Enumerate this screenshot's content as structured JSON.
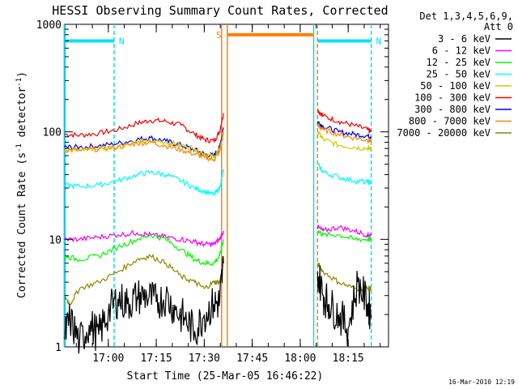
{
  "chart_data": {
    "type": "line",
    "title": "HESSI Observing Summary Count Rates, Corrected",
    "xlabel": "Start Time (25-Mar-05 16:46:22)",
    "ylabel": "Corrected Count Rate (s",
    "ylabel_sup": "-1",
    "ylabel_mid": " detector",
    "ylabel_end": ")",
    "y_scale": "log",
    "ylim": [
      1,
      1000
    ],
    "xlim_minutes": [
      16.77,
      18.46
    ],
    "x_ticks": [
      {
        "hours": 17.0,
        "label": "17:00"
      },
      {
        "hours": 17.25,
        "label": "17:15"
      },
      {
        "hours": 17.5,
        "label": "17:30"
      },
      {
        "hours": 17.75,
        "label": "17:45"
      },
      {
        "hours": 18.0,
        "label": "18:00"
      },
      {
        "hours": 18.25,
        "label": "18:15"
      }
    ],
    "y_ticks": [
      {
        "value": 1,
        "label": "1"
      },
      {
        "value": 10,
        "label": "10"
      },
      {
        "value": 100,
        "label": "100"
      },
      {
        "value": 1000,
        "label": "1000"
      }
    ],
    "legend": {
      "header_line1": "Det 1,3,4,5,6,9,",
      "header_line2": "Att 0",
      "placement": "right",
      "entries": [
        {
          "label": "3 - 6 keV",
          "color": "#000000"
        },
        {
          "label": "6 - 12 keV",
          "color": "#ff00ff"
        },
        {
          "label": "12 - 25 keV",
          "color": "#00ff00"
        },
        {
          "label": "25 - 50 keV",
          "color": "#00ffff"
        },
        {
          "label": "50 - 100 keV",
          "color": "#d4cc00"
        },
        {
          "label": "100 - 300 keV",
          "color": "#ff0000"
        },
        {
          "label": "300 - 800 keV",
          "color": "#0000ff"
        },
        {
          "label": "800 - 7000 keV",
          "color": "#ff8800"
        },
        {
          "label": "7000 - 20000 keV",
          "color": "#888800"
        }
      ]
    },
    "flags": [
      {
        "label": "N",
        "color": "#00e0ff",
        "start_hours": 16.77,
        "end_hours": 17.03,
        "level": 700
      },
      {
        "label": "N",
        "color": "#00e0ff",
        "start_hours": 18.09,
        "end_hours": 18.37,
        "level": 700
      },
      {
        "label": "S",
        "color": "#ff8000",
        "start_hours": 17.62,
        "end_hours": 18.07,
        "level": 800
      }
    ],
    "vlines": [
      {
        "hours": 16.77,
        "color": "#00e0ff",
        "style": "solid"
      },
      {
        "hours": 17.03,
        "color": "#00e0ff",
        "style": "dashed"
      },
      {
        "hours": 17.59,
        "color": "#ff8000",
        "style": "solid"
      },
      {
        "hours": 17.62,
        "color": "#ff8000",
        "style": "solid"
      },
      {
        "hours": 18.07,
        "color": "#00e0ff",
        "style": "solid"
      },
      {
        "hours": 18.09,
        "color": "#ff8000",
        "style": "dashed"
      },
      {
        "hours": 18.37,
        "color": "#00e0ff",
        "style": "dashed"
      }
    ],
    "series": [
      {
        "color": "#ff0000",
        "x_hours": [
          16.77,
          16.85,
          16.95,
          17.05,
          17.15,
          17.22,
          17.3,
          17.38,
          17.45,
          17.5,
          17.55,
          17.58,
          17.6,
          null,
          18.09,
          18.12,
          18.2,
          18.28,
          18.35,
          18.37
        ],
        "y": [
          95,
          93,
          97,
          105,
          120,
          128,
          125,
          115,
          95,
          85,
          82,
          100,
          150,
          null,
          160,
          140,
          125,
          115,
          105,
          100
        ]
      },
      {
        "color": "#0000ff",
        "x_hours": [
          16.77,
          16.85,
          16.95,
          17.05,
          17.15,
          17.22,
          17.3,
          17.38,
          17.45,
          17.5,
          17.55,
          17.58,
          17.6,
          null,
          18.09,
          18.12,
          18.2,
          18.28,
          18.35,
          18.37
        ],
        "y": [
          72,
          72,
          74,
          78,
          85,
          88,
          82,
          75,
          68,
          62,
          60,
          72,
          110,
          null,
          125,
          112,
          100,
          95,
          92,
          90
        ]
      },
      {
        "color": "#d4cc00",
        "x_hours": [
          16.77,
          16.85,
          16.95,
          17.05,
          17.15,
          17.22,
          17.3,
          17.38,
          17.45,
          17.5,
          17.55,
          17.58,
          17.6,
          null,
          18.09,
          18.12,
          18.2,
          18.28,
          18.35,
          18.37
        ],
        "y": [
          68,
          68,
          70,
          74,
          80,
          82,
          80,
          75,
          70,
          62,
          58,
          68,
          100,
          null,
          100,
          85,
          75,
          72,
          70,
          70
        ]
      },
      {
        "color": "#ff8800",
        "x_hours": [
          16.77,
          16.85,
          16.95,
          17.05,
          17.15,
          17.22,
          17.3,
          17.38,
          17.45,
          17.5,
          17.55,
          17.58,
          17.6,
          null,
          18.09,
          18.12,
          18.2,
          18.28,
          18.35,
          18.37
        ],
        "y": [
          68,
          67,
          69,
          72,
          78,
          80,
          74,
          68,
          62,
          58,
          55,
          65,
          95,
          null,
          115,
          105,
          95,
          88,
          84,
          82
        ]
      },
      {
        "color": "#00ffff",
        "x_hours": [
          16.77,
          16.85,
          16.95,
          17.05,
          17.15,
          17.22,
          17.3,
          17.38,
          17.45,
          17.5,
          17.55,
          17.58,
          17.6,
          null,
          18.09,
          18.12,
          18.2,
          18.28,
          18.35,
          18.37
        ],
        "y": [
          32,
          31,
          32,
          35,
          40,
          42,
          40,
          35,
          30,
          28,
          26,
          30,
          45,
          null,
          50,
          42,
          38,
          35,
          34,
          34
        ]
      },
      {
        "color": "#ff00ff",
        "x_hours": [
          16.77,
          16.85,
          16.95,
          17.05,
          17.15,
          17.22,
          17.3,
          17.38,
          17.45,
          17.5,
          17.55,
          17.58,
          17.6,
          null,
          18.09,
          18.12,
          18.2,
          18.28,
          18.35,
          18.37
        ],
        "y": [
          10,
          10,
          10.5,
          11,
          11.5,
          11,
          10.5,
          10,
          9.5,
          9,
          9,
          10,
          12,
          null,
          13,
          12,
          13,
          12,
          11,
          11
        ]
      },
      {
        "color": "#00ff00",
        "x_hours": [
          16.77,
          16.85,
          16.95,
          17.05,
          17.15,
          17.22,
          17.3,
          17.38,
          17.45,
          17.5,
          17.55,
          17.58,
          17.6,
          null,
          18.09,
          18.12,
          18.2,
          18.28,
          18.35,
          18.37
        ],
        "y": [
          7,
          6.5,
          7,
          8.5,
          10,
          11,
          10,
          8,
          6.5,
          6,
          6,
          7,
          10,
          null,
          12,
          11,
          11,
          10,
          10,
          10
        ]
      },
      {
        "color": "#888800",
        "x_hours": [
          16.77,
          16.8,
          16.85,
          16.95,
          17.05,
          17.15,
          17.22,
          17.3,
          17.38,
          17.45,
          17.5,
          17.55,
          17.58,
          17.6,
          null,
          18.09,
          18.12,
          18.2,
          18.28,
          18.35,
          18.37
        ],
        "y": [
          3,
          2.5,
          3.5,
          4,
          5,
          6.5,
          7,
          6,
          4.5,
          4,
          3.5,
          4,
          4,
          6,
          null,
          6,
          5,
          4,
          3.5,
          3.5,
          3.5
        ]
      },
      {
        "color": "#000000",
        "x_hours": [
          16.77,
          16.8,
          16.85,
          16.9,
          16.95,
          17.0,
          17.05,
          17.1,
          17.15,
          17.2,
          17.25,
          17.3,
          17.35,
          17.4,
          17.45,
          17.5,
          17.55,
          17.58,
          17.6,
          null,
          18.09,
          18.12,
          18.15,
          18.2,
          18.25,
          18.3,
          18.35,
          18.37
        ],
        "y": [
          1.2,
          1.8,
          1.1,
          1.6,
          1.3,
          2.1,
          2.8,
          2.5,
          2.9,
          3.0,
          2.6,
          2.9,
          2.2,
          1.8,
          1.4,
          2.0,
          2.5,
          2.6,
          6.0,
          null,
          5.0,
          3.0,
          2.5,
          2.0,
          1.5,
          4.0,
          2.5,
          2.0
        ]
      }
    ]
  },
  "footer": {
    "timestamp": "16-Mar-2010 12:19"
  }
}
